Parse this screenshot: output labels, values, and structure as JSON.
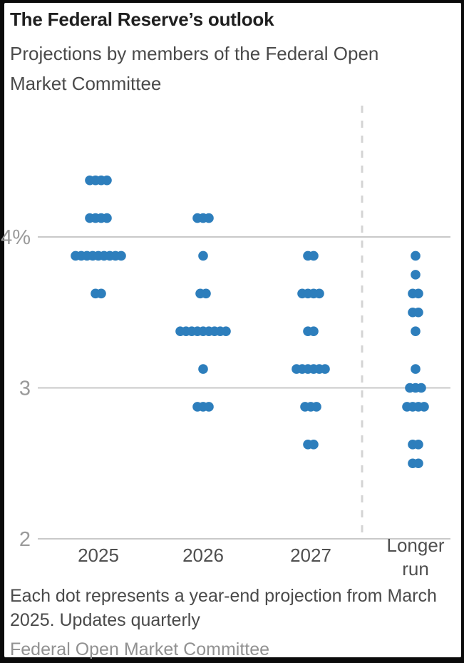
{
  "chart_data": {
    "type": "scatter",
    "subtype": "fomc-dot-plot",
    "title": "The Federal Reserve’s outlook",
    "subtitle": "Projections by members of the Federal Open Market Committee",
    "note": "Each dot represents a year-end projection from March 2025. Updates quarterly",
    "source": "Federal Open Market Committee",
    "unit": "percent interest rate",
    "ylim": [
      2,
      4.6
    ],
    "grid": "horizontal-only",
    "legend": "none",
    "dot_color": "#2d7ebc",
    "gridline_color": "#c9c9c9",
    "separator_color": "#d4d4d4",
    "y_gridlines": [
      {
        "value": 4,
        "label": "4%"
      },
      {
        "value": 3,
        "label": "3"
      },
      {
        "value": 2,
        "label": "2"
      }
    ],
    "columns": [
      {
        "label": "2025",
        "projections": [
          {
            "rate": 4.375,
            "count": 4
          },
          {
            "rate": 4.125,
            "count": 4
          },
          {
            "rate": 3.875,
            "count": 9
          },
          {
            "rate": 3.625,
            "count": 2
          }
        ]
      },
      {
        "label": "2026",
        "projections": [
          {
            "rate": 4.125,
            "count": 3
          },
          {
            "rate": 3.875,
            "count": 1
          },
          {
            "rate": 3.625,
            "count": 2
          },
          {
            "rate": 3.375,
            "count": 9
          },
          {
            "rate": 3.125,
            "count": 1
          },
          {
            "rate": 2.875,
            "count": 3
          }
        ]
      },
      {
        "label": "2027",
        "projections": [
          {
            "rate": 3.875,
            "count": 2
          },
          {
            "rate": 3.625,
            "count": 4
          },
          {
            "rate": 3.375,
            "count": 2
          },
          {
            "rate": 3.125,
            "count": 6
          },
          {
            "rate": 2.875,
            "count": 3
          },
          {
            "rate": 2.625,
            "count": 2
          }
        ]
      },
      {
        "label": "Longer run",
        "projections": [
          {
            "rate": 3.875,
            "count": 1
          },
          {
            "rate": 3.75,
            "count": 1
          },
          {
            "rate": 3.625,
            "count": 2
          },
          {
            "rate": 3.5,
            "count": 2
          },
          {
            "rate": 3.375,
            "count": 1
          },
          {
            "rate": 3.125,
            "count": 1
          },
          {
            "rate": 3.0,
            "count": 3
          },
          {
            "rate": 2.875,
            "count": 4
          },
          {
            "rate": 2.625,
            "count": 2
          },
          {
            "rate": 2.5,
            "count": 2
          }
        ]
      }
    ],
    "separator_before_column": "Longer run"
  }
}
